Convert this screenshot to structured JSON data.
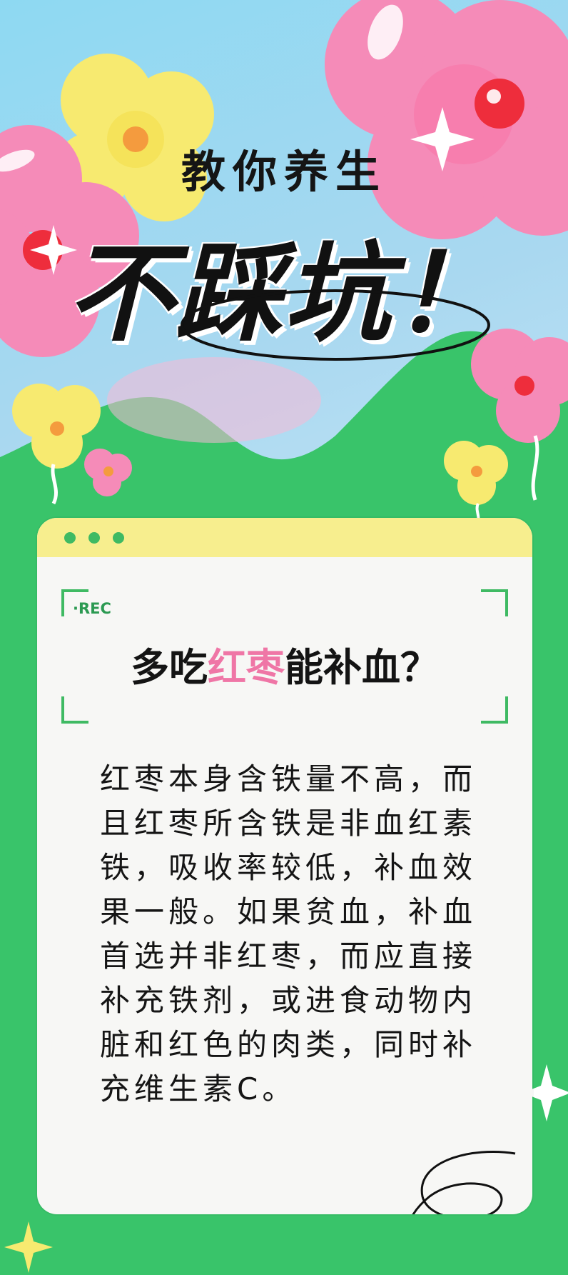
{
  "header": {
    "subtitle": "教你养生",
    "title": "不踩坑！"
  },
  "card": {
    "rec_label": "·REC",
    "question_part1": "多吃",
    "question_highlight": "红枣",
    "question_part2": "能补血？",
    "body": "红枣本身含铁量不高，而且红枣所含铁是非血红素铁，吸收率较低，补血效果一般。如果贫血，补血首选并非红枣，而应直接补充铁剂，或进食动物内脏和红色的肉类，同时补充维生素C。"
  },
  "colors": {
    "accent_green": "#3fba63",
    "highlight_pink": "#ef76a6",
    "card_top_yellow": "#f7ee8e"
  }
}
